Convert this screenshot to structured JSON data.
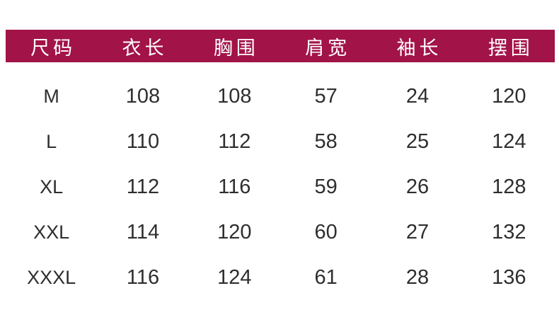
{
  "colors": {
    "header_bg": "#A21347",
    "header_text": "#FFFFFF",
    "body_text": "#2E2E2E"
  },
  "chart_data": {
    "type": "table",
    "title": "",
    "columns": [
      "尺码",
      "衣长",
      "胸围",
      "肩宽",
      "袖长",
      "摆围"
    ],
    "rows": [
      [
        "M",
        "108",
        "108",
        "57",
        "24",
        "120"
      ],
      [
        "L",
        "110",
        "112",
        "58",
        "25",
        "124"
      ],
      [
        "XL",
        "112",
        "116",
        "59",
        "26",
        "128"
      ],
      [
        "XXL",
        "114",
        "120",
        "60",
        "27",
        "132"
      ],
      [
        "XXXL",
        "116",
        "124",
        "61",
        "28",
        "136"
      ]
    ]
  }
}
